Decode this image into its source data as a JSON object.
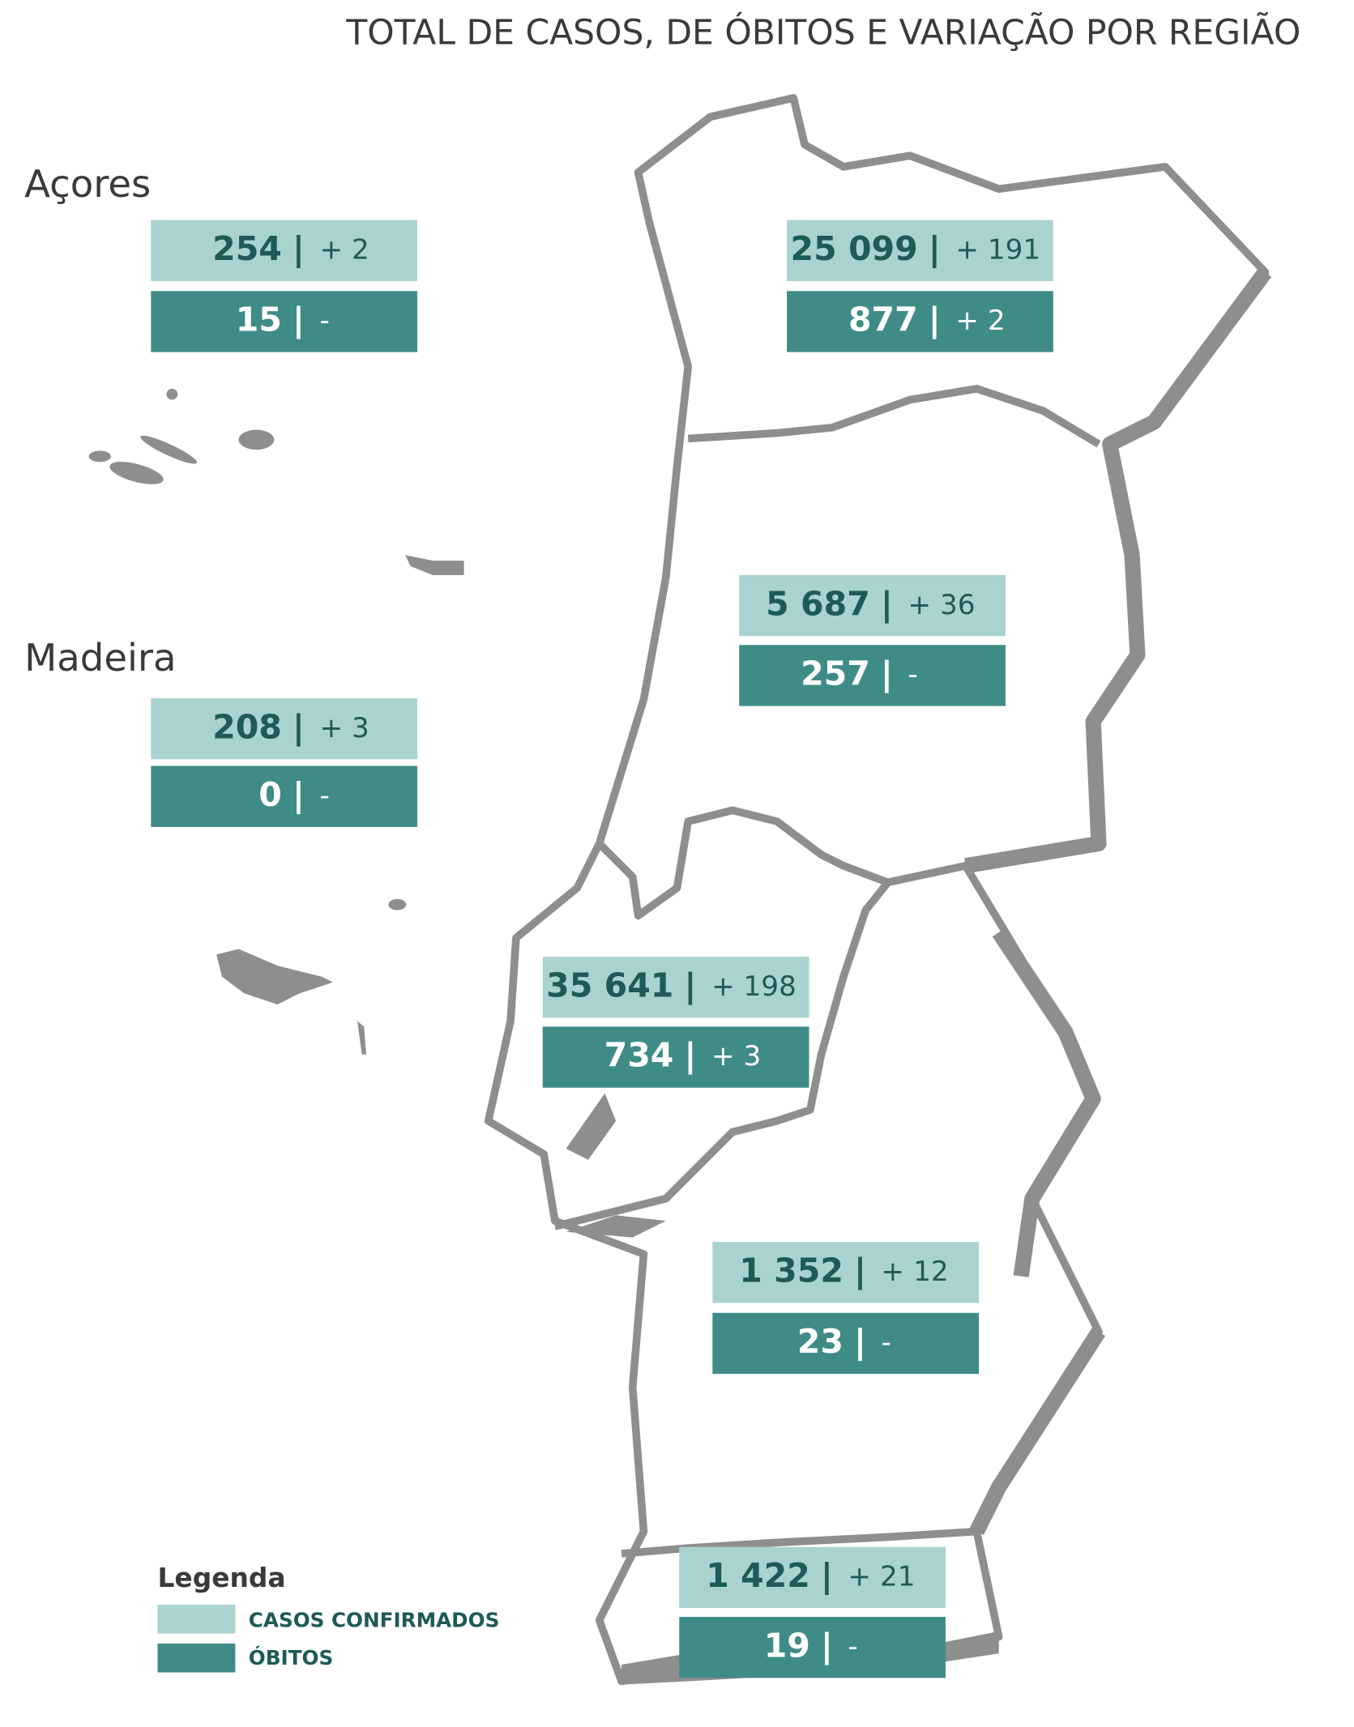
{
  "title": "TOTAL DE CASOS, DE ÓBITOS  E VARIAÇÃO POR REGIÃO",
  "separator": "|",
  "regions": [
    {
      "label": "Açores",
      "cases": "254",
      "cases_change": "+ 2",
      "deaths": "15",
      "deaths_change": "-"
    },
    {
      "label": "Madeira",
      "cases": "208",
      "cases_change": "+ 3",
      "deaths": "0",
      "deaths_change": "-"
    },
    {
      "cases": "25 099",
      "cases_change": "+ 191",
      "deaths": "877",
      "deaths_change": "+ 2"
    },
    {
      "cases": "5 687",
      "cases_change": "+ 36",
      "deaths": "257",
      "deaths_change": "-"
    },
    {
      "cases": "35 641",
      "cases_change": "+ 198",
      "deaths": "734",
      "deaths_change": "+ 3"
    },
    {
      "cases": "1 352",
      "cases_change": "+ 12",
      "deaths": "23",
      "deaths_change": "-"
    },
    {
      "cases": "1 422",
      "cases_change": "+ 21",
      "deaths": "19",
      "deaths_change": "-"
    }
  ],
  "legend": {
    "title": "Legenda",
    "items": [
      "CASOS CONFIRMADOS",
      "ÓBITOS"
    ]
  }
}
